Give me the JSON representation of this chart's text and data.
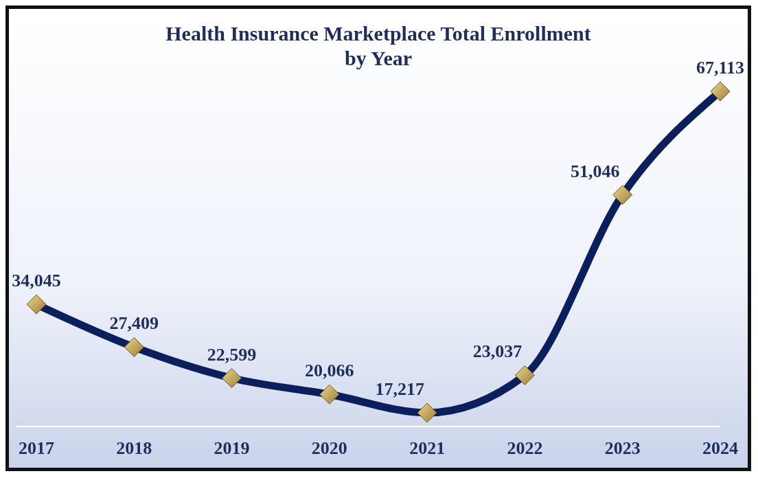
{
  "chart_data": {
    "type": "line",
    "title": "Health Insurance Marketplace Total Enrollment\nby Year",
    "categories": [
      "2017",
      "2018",
      "2019",
      "2020",
      "2021",
      "2022",
      "2023",
      "2024"
    ],
    "series": [
      {
        "color": "#0b1f5c",
        "values": [
          34045,
          27409,
          22599,
          20066,
          17217,
          23037,
          51046,
          67113
        ],
        "value_labels": [
          "34,045",
          "27,409",
          "22,599",
          "20,066",
          "17,217",
          "23,037",
          "51,046",
          "67,113"
        ]
      }
    ],
    "marker": "diamond",
    "grid": false,
    "legend": false
  }
}
